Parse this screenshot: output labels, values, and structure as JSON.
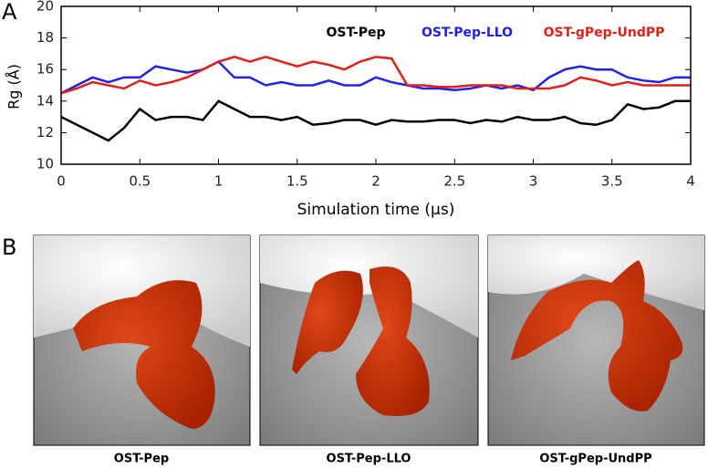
{
  "chart_data": {
    "type": "line",
    "x_label": "Simulation time (µs)",
    "y_label": "Rg (Å)",
    "x": [
      0,
      0.1,
      0.2,
      0.3,
      0.4,
      0.5,
      0.6,
      0.7,
      0.8,
      0.9,
      1.0,
      1.1,
      1.2,
      1.3,
      1.4,
      1.5,
      1.6,
      1.7,
      1.8,
      1.9,
      2.0,
      2.1,
      2.2,
      2.3,
      2.4,
      2.5,
      2.6,
      2.7,
      2.8,
      2.9,
      3.0,
      3.1,
      3.2,
      3.3,
      3.4,
      3.5,
      3.6,
      3.7,
      3.8,
      3.9,
      4.0
    ],
    "series": [
      {
        "name": "OST-Pep",
        "color": "#000000",
        "values": [
          13,
          12.5,
          12,
          11.5,
          12.3,
          13.5,
          12.8,
          13,
          13,
          12.8,
          14,
          13.5,
          13,
          13,
          12.8,
          13,
          12.5,
          12.6,
          12.8,
          12.8,
          12.5,
          12.8,
          12.7,
          12.7,
          12.8,
          12.8,
          12.6,
          12.8,
          12.7,
          13,
          12.8,
          12.8,
          13,
          12.6,
          12.5,
          12.8,
          13.8,
          13.5,
          13.6,
          14,
          14
        ]
      },
      {
        "name": "OST-Pep-LLO",
        "color": "#2222e0",
        "values": [
          14.5,
          15,
          15.5,
          15.2,
          15.5,
          15.5,
          16.2,
          16,
          15.8,
          16,
          16.5,
          15.5,
          15.5,
          15,
          15.2,
          15,
          15,
          15.3,
          15,
          15,
          15.5,
          15.2,
          15,
          14.8,
          14.8,
          14.7,
          14.8,
          15,
          14.8,
          15,
          14.7,
          15.5,
          16,
          16.2,
          16,
          16,
          15.5,
          15.3,
          15.2,
          15.5,
          15.5
        ]
      },
      {
        "name": "OST-gPep-UndPP",
        "color": "#e0201a",
        "values": [
          14.5,
          14.8,
          15.2,
          15,
          14.8,
          15.3,
          15,
          15.2,
          15.5,
          16,
          16.5,
          16.8,
          16.5,
          16.8,
          16.5,
          16.2,
          16.5,
          16.3,
          16,
          16.5,
          16.8,
          16.7,
          15,
          15,
          14.9,
          14.9,
          15,
          15,
          15,
          14.8,
          14.8,
          14.8,
          15,
          15.5,
          15.3,
          15,
          15.2,
          15,
          15,
          15,
          15
        ]
      }
    ],
    "xlim": [
      0,
      4
    ],
    "xticks": [
      0,
      0.5,
      1,
      1.5,
      2,
      2.5,
      3,
      3.5,
      4
    ],
    "ylim": [
      10,
      20
    ],
    "yticks": [
      10,
      12,
      14,
      16,
      18,
      20
    ],
    "legend": "top"
  },
  "panel_labels": [
    "A",
    "B"
  ],
  "structures": [
    "OST-Pep",
    "OST-Pep-LLO",
    "OST-gPep-UndPP"
  ]
}
